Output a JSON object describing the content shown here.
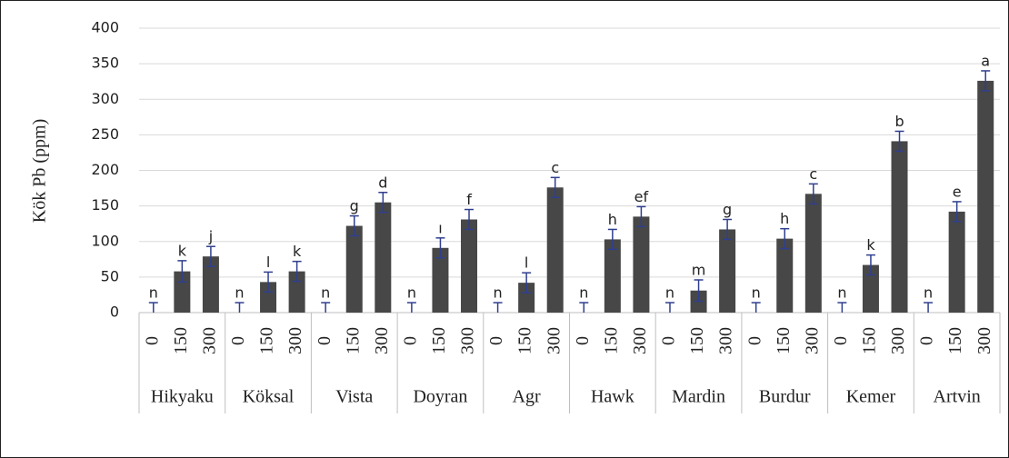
{
  "chart_data": {
    "type": "bar",
    "y_label": "Kök Pb (ppm)",
    "ylim": [
      0,
      400
    ],
    "yticks": [
      0,
      50,
      100,
      150,
      200,
      250,
      300,
      350,
      400
    ],
    "grid": true,
    "color": "#474747",
    "error_color": "#2f3f8f",
    "doses": [
      "0",
      "150",
      "300"
    ],
    "groups": [
      {
        "name": "Hikyaku",
        "values": [
          0,
          58,
          79
        ],
        "errors": [
          14,
          15,
          14
        ],
        "letters": [
          "n",
          "k",
          "j"
        ]
      },
      {
        "name": "Köksal",
        "values": [
          0,
          43,
          58
        ],
        "errors": [
          14,
          14,
          14
        ],
        "letters": [
          "n",
          "l",
          "k"
        ]
      },
      {
        "name": "Vista",
        "values": [
          0,
          122,
          155
        ],
        "errors": [
          14,
          14,
          14
        ],
        "letters": [
          "n",
          "g",
          "d"
        ]
      },
      {
        "name": "Doyran",
        "values": [
          0,
          91,
          131
        ],
        "errors": [
          14,
          14,
          14
        ],
        "letters": [
          "n",
          "ı",
          "f"
        ]
      },
      {
        "name": "Agr",
        "values": [
          0,
          42,
          176
        ],
        "errors": [
          14,
          14,
          14
        ],
        "letters": [
          "n",
          "l",
          "c"
        ]
      },
      {
        "name": "Hawk",
        "values": [
          0,
          103,
          135
        ],
        "errors": [
          14,
          14,
          14
        ],
        "letters": [
          "n",
          "h",
          "ef"
        ]
      },
      {
        "name": "Mardin",
        "values": [
          0,
          31,
          117
        ],
        "errors": [
          14,
          15,
          14
        ],
        "letters": [
          "n",
          "m",
          "g"
        ]
      },
      {
        "name": "Burdur",
        "values": [
          0,
          104,
          167
        ],
        "errors": [
          14,
          14,
          14
        ],
        "letters": [
          "n",
          "h",
          "c"
        ]
      },
      {
        "name": "Kemer",
        "values": [
          0,
          67,
          241
        ],
        "errors": [
          14,
          14,
          14
        ],
        "letters": [
          "n",
          "k",
          "b"
        ]
      },
      {
        "name": "Artvin",
        "values": [
          0,
          142,
          326
        ],
        "errors": [
          14,
          14,
          14
        ],
        "letters": [
          "n",
          "e",
          "a"
        ]
      }
    ]
  }
}
